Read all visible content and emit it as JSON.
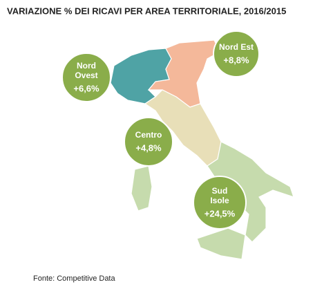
{
  "title": "VARIAZIONE % DEI RICAVI PER AREA TERRITORIALE, 2016/2015",
  "areas": [
    {
      "name": "Nord\nOvest",
      "label": "+6,6%"
    },
    {
      "name": "Nord Est",
      "label": "+8,8%"
    },
    {
      "name": "Centro",
      "label": "+4,8%"
    },
    {
      "name": "Sud\nIsole",
      "label": "+24,5%"
    }
  ],
  "source": "Fonte: Competitive Data"
}
